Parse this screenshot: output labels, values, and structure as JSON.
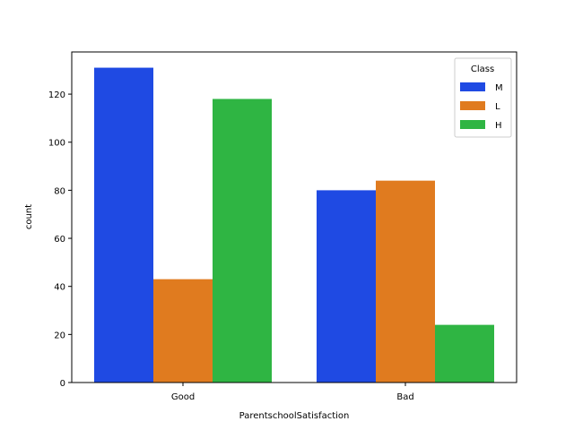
{
  "chart_data": {
    "type": "bar",
    "title": "",
    "xlabel": "ParentschoolSatisfaction",
    "ylabel": "count",
    "categories": [
      "Good",
      "Bad"
    ],
    "series": [
      {
        "name": "M",
        "values": [
          131,
          80
        ],
        "color": "#1f4ae3"
      },
      {
        "name": "L",
        "values": [
          43,
          84
        ],
        "color": "#e07b1f"
      },
      {
        "name": "H",
        "values": [
          118,
          24
        ],
        "color": "#2fb543"
      }
    ],
    "ylim": [
      0,
      137.55
    ],
    "yticks": [
      0,
      20,
      40,
      60,
      80,
      100,
      120
    ],
    "grid": false,
    "legend": {
      "title": "Class",
      "placement": "top-right"
    }
  }
}
